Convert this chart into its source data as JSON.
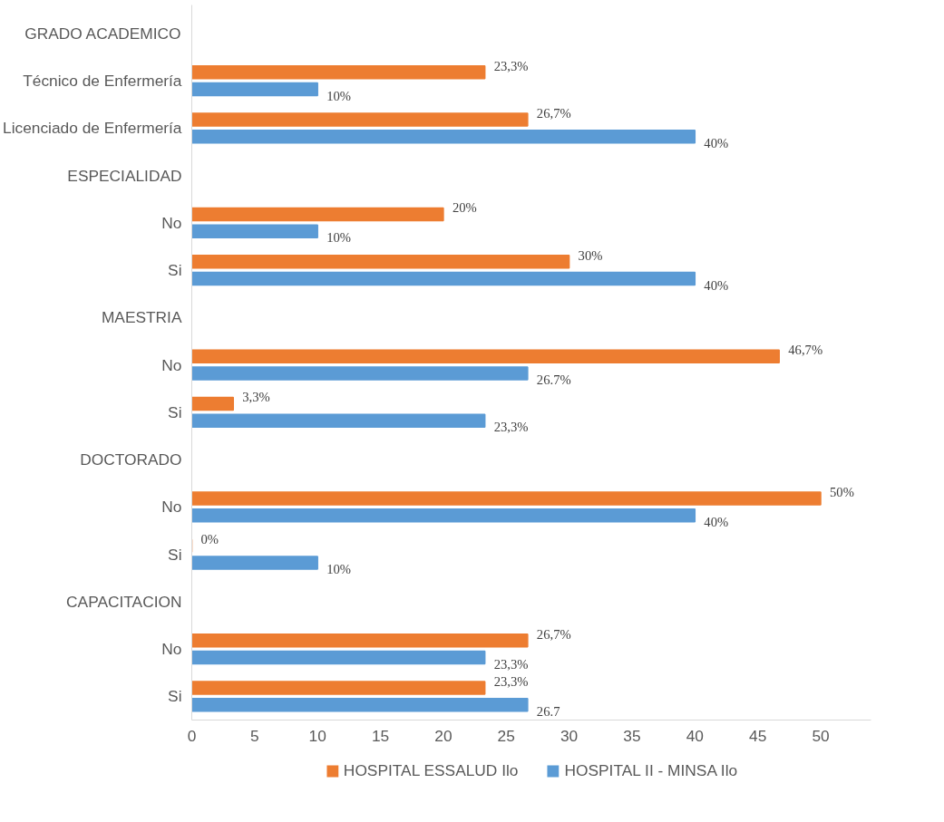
{
  "chart_data": {
    "type": "bar",
    "orientation": "horizontal",
    "categories": [
      "GRADO ACADEMICO",
      "Técnico de Enfermería",
      "Licenciado de Enfermería",
      "ESPECIALIDAD",
      "No",
      "Si",
      "MAESTRIA",
      "No",
      "Si",
      "DOCTORADO",
      "No",
      "Si",
      "CAPACITACION",
      "No",
      "Si"
    ],
    "series": [
      {
        "name": "HOSPITAL ESSALUD Ilo",
        "color": "#ed7d31",
        "values": [
          null,
          23.3,
          26.7,
          null,
          20,
          30,
          null,
          46.7,
          3.3,
          null,
          50,
          0,
          null,
          26.7,
          23.3
        ],
        "value_labels": [
          null,
          "23,3%",
          "26,7%",
          null,
          "20%",
          "30%",
          null,
          "46,7%",
          "3,3%",
          null,
          "50%",
          "0%",
          null,
          "26,7%",
          "23,3%"
        ]
      },
      {
        "name": "HOSPITAL II - MINSA Ilo",
        "color": "#5b9bd5",
        "values": [
          null,
          10,
          40,
          null,
          10,
          40,
          null,
          26.7,
          23.3,
          null,
          40,
          10,
          null,
          23.3,
          26.7
        ],
        "value_labels": [
          null,
          "10%",
          "40%",
          null,
          "10%",
          "40%",
          null,
          "26.7%",
          "23,3%",
          null,
          "40%",
          "10%",
          null,
          "23,3%",
          "26.7"
        ]
      }
    ],
    "xlim": [
      0,
      54
    ],
    "xticks": [
      0,
      5,
      10,
      15,
      20,
      25,
      30,
      35,
      40,
      45,
      50
    ],
    "grid": false,
    "legend": "bottom"
  }
}
